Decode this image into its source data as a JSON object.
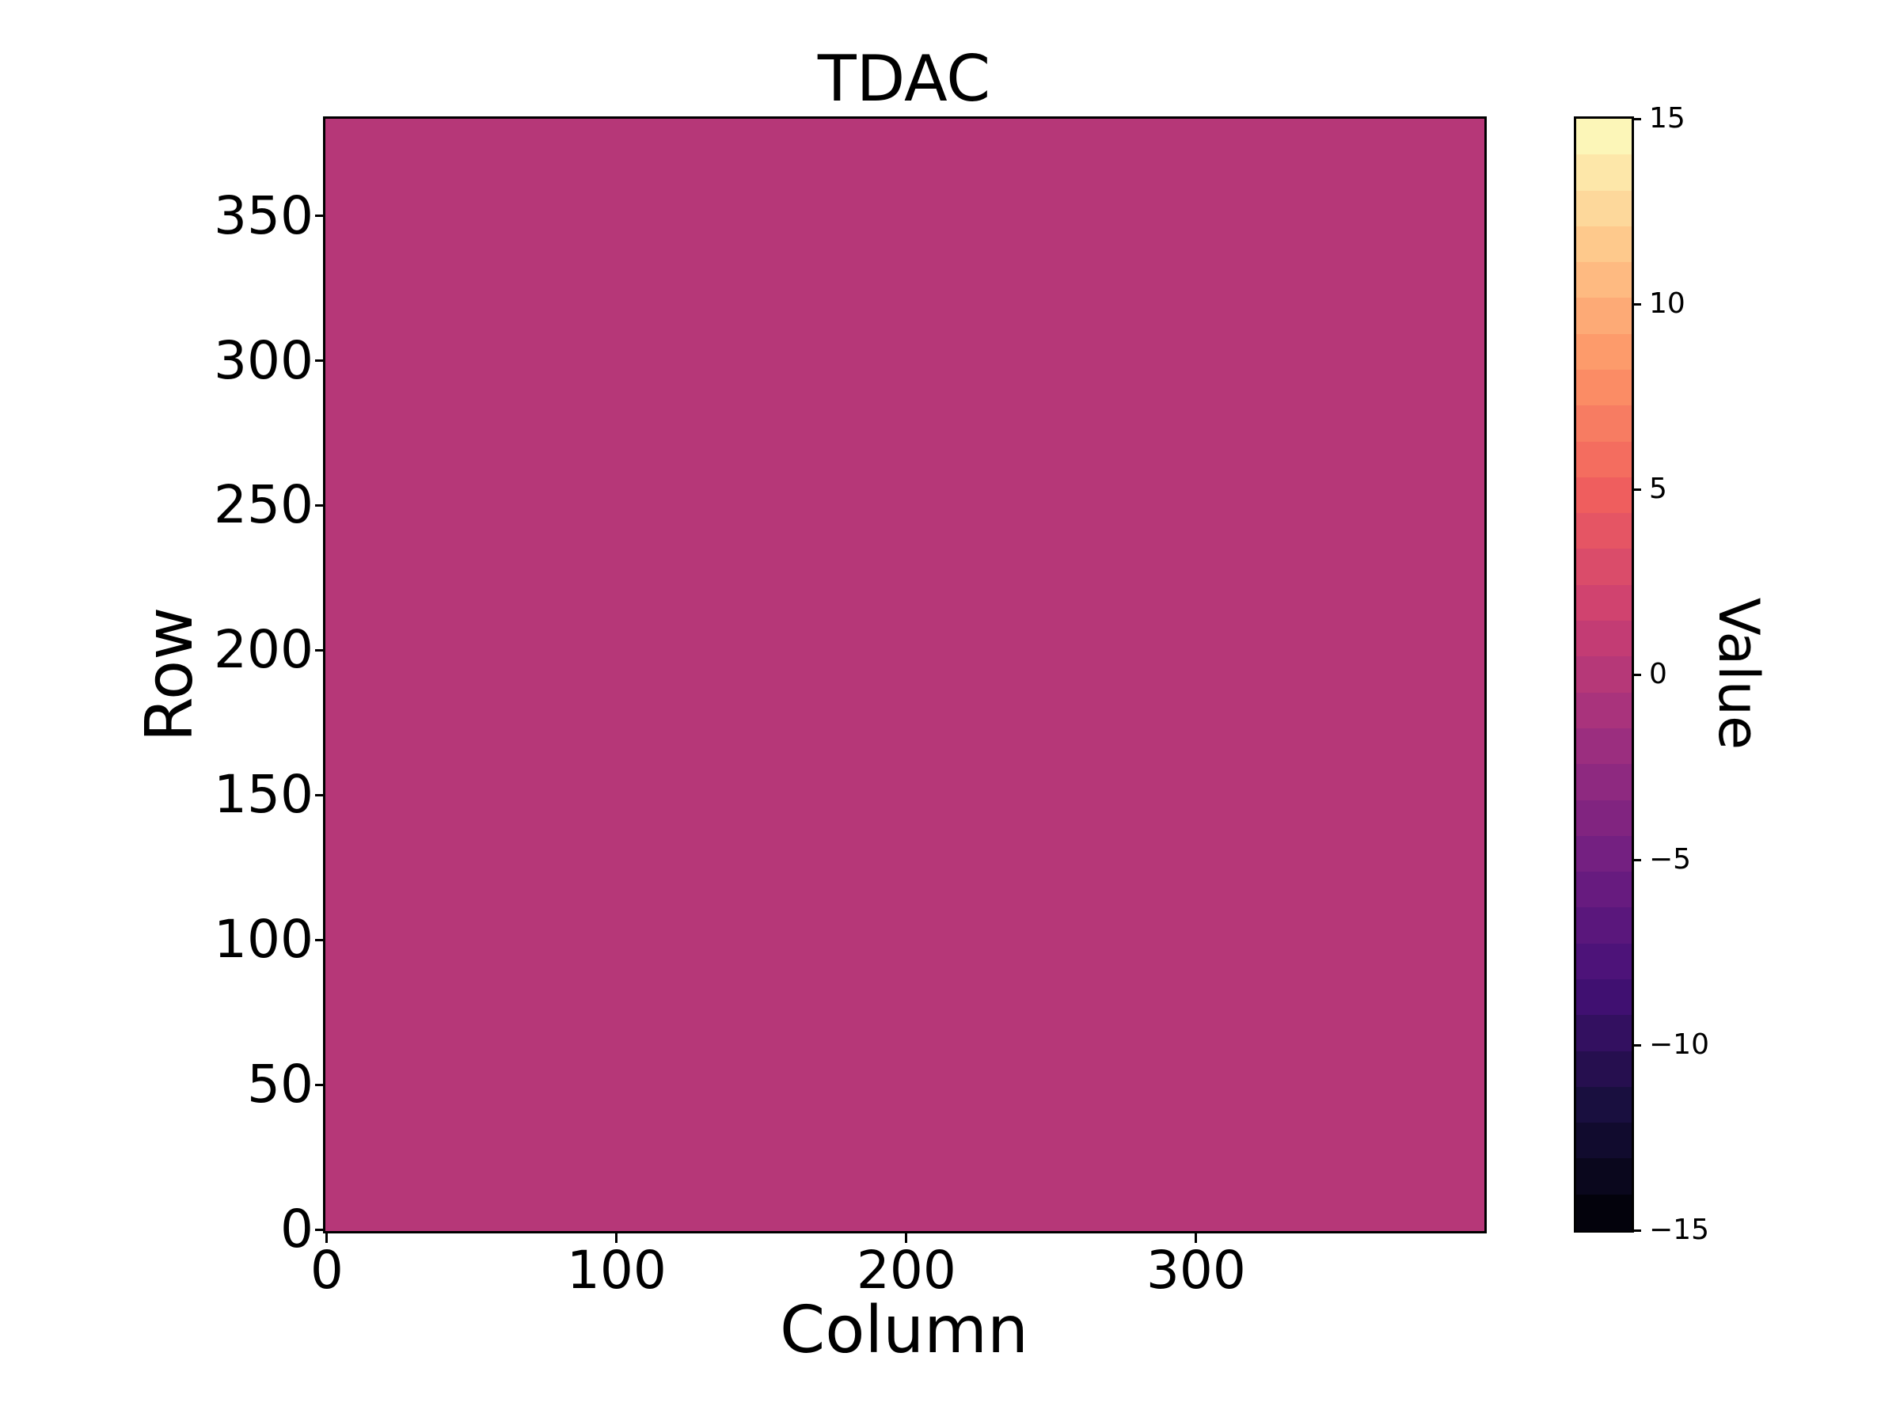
{
  "figure": {
    "background_color": "#ffffff",
    "text_color": "#000000",
    "spine_color": "#000000"
  },
  "chart_data": {
    "type": "heatmap",
    "title": "TDAC",
    "xlabel": "Column",
    "ylabel": "Row",
    "colorbar_label": "Value",
    "n_cols": 400,
    "n_rows": 384,
    "x_range": [
      -0.5,
      399.5
    ],
    "y_range": [
      -0.5,
      383.5
    ],
    "vmin": -15,
    "vmax": 15,
    "n_bins": 31,
    "uniform_value": 0,
    "fill_color": "#b63778",
    "colormap": "magma",
    "colormap_stops": [
      "#000004",
      "#180f3e",
      "#451077",
      "#721f81",
      "#9f2f7f",
      "#cd4071",
      "#f1605d",
      "#fd9567",
      "#feca8d",
      "#fcfdbf"
    ],
    "x_ticks": [
      0,
      100,
      200,
      300
    ],
    "x_tick_labels": [
      "0",
      "100",
      "200",
      "300"
    ],
    "y_ticks": [
      0,
      50,
      100,
      150,
      200,
      250,
      300,
      350
    ],
    "y_tick_labels": [
      "0",
      "50",
      "100",
      "150",
      "200",
      "250",
      "300",
      "350"
    ],
    "colorbar_ticks": [
      15,
      10,
      5,
      0,
      -5,
      -10,
      -15
    ],
    "colorbar_tick_labels": [
      "15",
      "10",
      "5",
      "0",
      "−5",
      "−10",
      "−15"
    ],
    "grid": false,
    "legend": false
  }
}
